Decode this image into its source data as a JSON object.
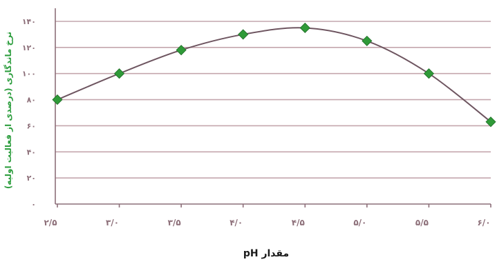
{
  "chart_data": {
    "type": "line",
    "title": "",
    "xlabel": "مقدار pH",
    "ylabel": "نرخ ماندگاری (درصدی از فعالیت اولیه)",
    "x": [
      2.5,
      3.0,
      3.5,
      4.0,
      4.5,
      5.0,
      5.5,
      6.0
    ],
    "x_tick_labels": [
      "۲/۵",
      "۳/۰",
      "۳/۵",
      "۴/۰",
      "۴/۵",
      "۵/۰",
      "۵/۵",
      "۶/۰"
    ],
    "y_ticks": [
      0,
      20,
      40,
      60,
      80,
      100,
      120,
      140
    ],
    "y_tick_labels": [
      "۰",
      "۲۰",
      "۴۰",
      "۶۰",
      "۸۰",
      "۱۰۰",
      "۱۲۰",
      "۱۴۰"
    ],
    "ylim": [
      0,
      140
    ],
    "grid": true,
    "series": [
      {
        "values": [
          80,
          100,
          118,
          130,
          135,
          125,
          100,
          63
        ]
      }
    ],
    "colors": {
      "line": "#6e5560",
      "marker": "#2f9a38",
      "grid": "#c4a6ad",
      "axis": "#8c6e78"
    }
  }
}
